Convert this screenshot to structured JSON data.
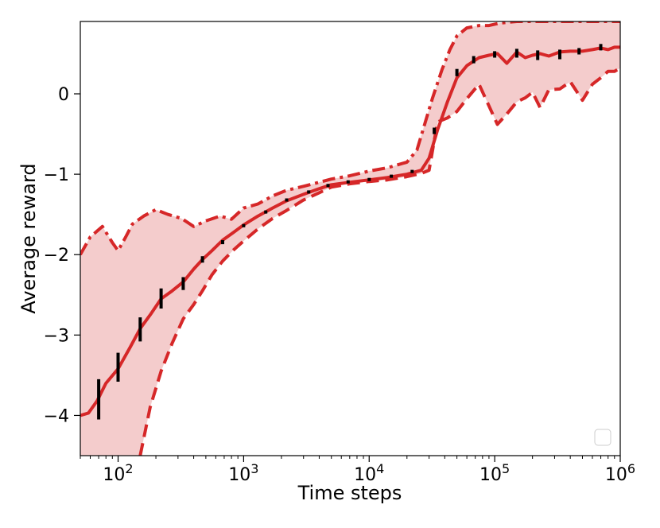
{
  "chart_data": {
    "type": "line",
    "title": "",
    "xlabel": "Time steps",
    "ylabel": "Average reward",
    "xscale": "log",
    "xlim": [
      50,
      1000000
    ],
    "ylim": [
      -4.5,
      0.9
    ],
    "grid": false,
    "legend": {
      "placement": "bottom-right",
      "entries": []
    },
    "x_ticks": [
      {
        "value": 100,
        "base": "10",
        "exp": "2"
      },
      {
        "value": 1000,
        "base": "10",
        "exp": "3"
      },
      {
        "value": 10000,
        "base": "10",
        "exp": "4"
      },
      {
        "value": 100000,
        "base": "10",
        "exp": "5"
      },
      {
        "value": 1000000,
        "base": "10",
        "exp": "6"
      }
    ],
    "y_ticks": [
      {
        "value": 0,
        "label": "0"
      },
      {
        "value": -1,
        "label": "−1"
      },
      {
        "value": -2,
        "label": "−2"
      },
      {
        "value": -3,
        "label": "−3"
      },
      {
        "value": -4,
        "label": "−4"
      }
    ],
    "colors": {
      "line": "#d62728",
      "band": "#f4cccc",
      "error_bar": "#000000"
    },
    "series": [
      {
        "style": "solid",
        "x": [
          50,
          58,
          68,
          80,
          100,
          125,
          150,
          180,
          220,
          270,
          330,
          400,
          470,
          560,
          680,
          820,
          1000,
          1300,
          1700,
          2200,
          3000,
          4000,
          5000,
          7000,
          10000,
          14000,
          20000,
          26000,
          30000,
          35000,
          42000,
          50000,
          60000,
          75000,
          90000,
          105000,
          125000,
          150000,
          175000,
          200000,
          230000,
          270000,
          330000,
          400000,
          500000,
          600000,
          700000,
          800000,
          900000,
          1000000
        ],
        "y": [
          -4.0,
          -3.97,
          -3.82,
          -3.6,
          -3.42,
          -3.15,
          -2.92,
          -2.75,
          -2.55,
          -2.45,
          -2.34,
          -2.18,
          -2.06,
          -1.95,
          -1.82,
          -1.73,
          -1.63,
          -1.52,
          -1.42,
          -1.33,
          -1.25,
          -1.18,
          -1.13,
          -1.1,
          -1.07,
          -1.04,
          -1.0,
          -0.95,
          -0.8,
          -0.45,
          -0.1,
          0.2,
          0.35,
          0.45,
          0.48,
          0.5,
          0.38,
          0.52,
          0.45,
          0.48,
          0.5,
          0.47,
          0.52,
          0.53,
          0.53,
          0.55,
          0.57,
          0.55,
          0.58,
          0.58
        ]
      },
      {
        "style": "dashed",
        "role": "lower",
        "x": [
          150,
          180,
          220,
          270,
          330,
          400,
          470,
          560,
          680,
          820,
          1000,
          1300,
          1700,
          2200,
          3000,
          4000,
          5000,
          7000,
          10000,
          14000,
          20000,
          26000,
          30000,
          35000,
          42000,
          50000,
          60000,
          75000,
          90000,
          105000,
          125000,
          150000,
          175000,
          200000,
          230000,
          270000,
          330000,
          400000,
          500000,
          600000,
          700000,
          800000,
          900000,
          1000000
        ],
        "y": [
          -4.5,
          -3.9,
          -3.45,
          -3.1,
          -2.8,
          -2.62,
          -2.45,
          -2.25,
          -2.08,
          -1.95,
          -1.83,
          -1.68,
          -1.55,
          -1.45,
          -1.32,
          -1.23,
          -1.16,
          -1.12,
          -1.09,
          -1.07,
          -1.03,
          -0.99,
          -0.95,
          -0.35,
          -0.3,
          -0.22,
          -0.06,
          0.12,
          -0.15,
          -0.38,
          -0.25,
          -0.1,
          -0.05,
          0.02,
          -0.17,
          0.05,
          0.06,
          0.15,
          -0.08,
          0.12,
          0.2,
          0.28,
          0.28,
          0.32
        ]
      },
      {
        "style": "dashdot",
        "role": "upper",
        "x": [
          50,
          60,
          75,
          90,
          100,
          115,
          130,
          160,
          200,
          250,
          320,
          400,
          500,
          650,
          800,
          1000,
          1300,
          1700,
          2200,
          3000,
          4000,
          5000,
          7000,
          10000,
          14000,
          20000,
          24000,
          28000,
          32000,
          38000,
          44000,
          50000,
          60000,
          75000,
          90000,
          110000,
          150000,
          200000,
          300000,
          400000,
          500000,
          600000,
          700000,
          800000,
          900000,
          1000000
        ],
        "y": [
          -2.0,
          -1.78,
          -1.65,
          -1.85,
          -1.95,
          -1.78,
          -1.62,
          -1.52,
          -1.44,
          -1.5,
          -1.55,
          -1.65,
          -1.58,
          -1.52,
          -1.56,
          -1.42,
          -1.37,
          -1.27,
          -1.2,
          -1.15,
          -1.1,
          -1.06,
          -1.02,
          -0.96,
          -0.92,
          -0.85,
          -0.7,
          -0.35,
          -0.05,
          0.3,
          0.55,
          0.72,
          0.82,
          0.85,
          0.85,
          0.88,
          0.9,
          0.9,
          0.9,
          0.9,
          0.9,
          0.9,
          0.9,
          0.9,
          0.9,
          0.9
        ]
      }
    ],
    "error_bars": [
      {
        "x": 70,
        "low": -4.05,
        "high": -3.55
      },
      {
        "x": 100,
        "low": -3.58,
        "high": -3.22
      },
      {
        "x": 150,
        "low": -3.08,
        "high": -2.78
      },
      {
        "x": 220,
        "low": -2.67,
        "high": -2.42
      },
      {
        "x": 330,
        "low": -2.44,
        "high": -2.28
      },
      {
        "x": 470,
        "low": -2.1,
        "high": -2.02
      },
      {
        "x": 680,
        "low": -1.87,
        "high": -1.82
      },
      {
        "x": 1000,
        "low": -1.66,
        "high": -1.62
      },
      {
        "x": 1500,
        "low": -1.48,
        "high": -1.46
      },
      {
        "x": 2200,
        "low": -1.33,
        "high": -1.31
      },
      {
        "x": 3300,
        "low": -1.23,
        "high": -1.21
      },
      {
        "x": 4700,
        "low": -1.15,
        "high": -1.13
      },
      {
        "x": 6800,
        "low": -1.1,
        "high": -1.09
      },
      {
        "x": 10000,
        "low": -1.07,
        "high": -1.06
      },
      {
        "x": 15000,
        "low": -1.03,
        "high": -1.02
      },
      {
        "x": 22000,
        "low": -0.97,
        "high": -0.96
      },
      {
        "x": 33000,
        "low": -0.5,
        "high": -0.42
      },
      {
        "x": 50000,
        "low": 0.22,
        "high": 0.31
      },
      {
        "x": 68000,
        "low": 0.38,
        "high": 0.47
      },
      {
        "x": 100000,
        "low": 0.45,
        "high": 0.53
      },
      {
        "x": 150000,
        "low": 0.45,
        "high": 0.56
      },
      {
        "x": 220000,
        "low": 0.42,
        "high": 0.54
      },
      {
        "x": 330000,
        "low": 0.43,
        "high": 0.55
      },
      {
        "x": 470000,
        "low": 0.49,
        "high": 0.57
      },
      {
        "x": 700000,
        "low": 0.54,
        "high": 0.62
      }
    ]
  }
}
